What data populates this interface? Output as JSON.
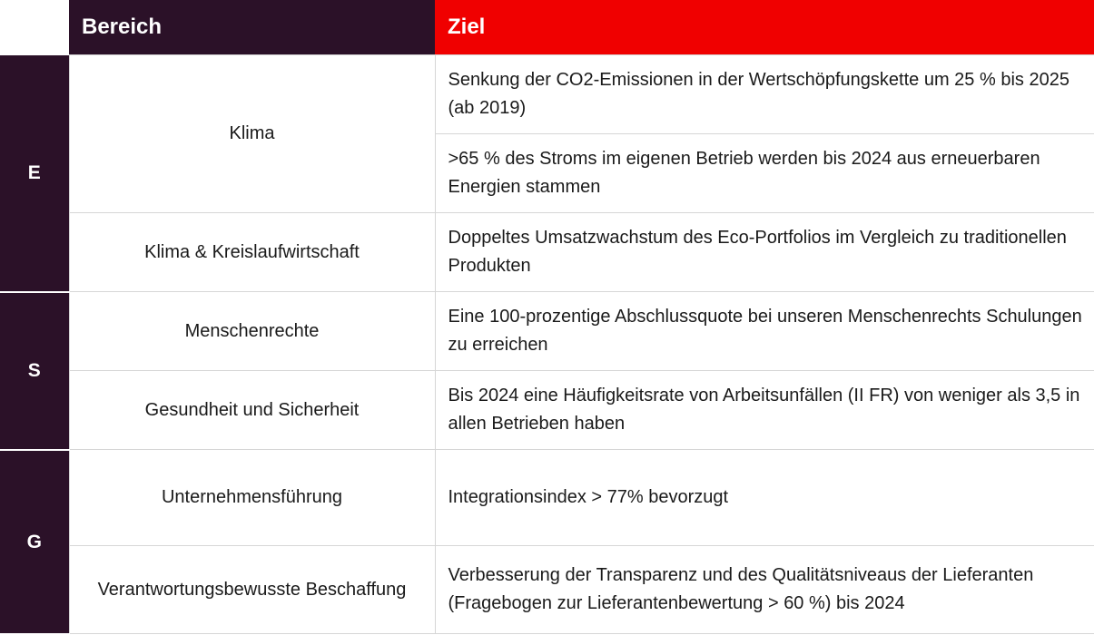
{
  "header": {
    "area_label": "Bereich",
    "goal_label": "Ziel"
  },
  "categories": {
    "e": "E",
    "s": "S",
    "g": "G"
  },
  "areas": {
    "klima": "Klima",
    "kreislauf": "Klima & Kreislaufwirtschaft",
    "menschenrechte": "Menschenrechte",
    "gesundheit": "Gesundheit und Sicherheit",
    "fuehrung": "Unternehmensführung",
    "beschaffung": "Verantwortungsbewusste Beschaffung"
  },
  "goals": {
    "co2": "Senkung der CO2-Emissionen in der Wertschöpfungskette um 25 % bis 2025 (ab 2019)",
    "strom": ">65 % des Stroms im eigenen Betrieb werden bis 2024 aus erneuerbaren Energien stammen",
    "umsatz": "Doppeltes Umsatzwachstum des Eco-Portfolios im Vergleich zu traditionellen Produkten",
    "schulung": "Eine 100-prozentige Abschlussquote bei unseren Menschenrechts Schulungen zu erreichen",
    "unfall": "Bis 2024 eine Häufigkeitsrate von Arbeitsunfällen (II FR) von weniger als 3,5 in allen Betrieben haben",
    "integration": "Integrationsindex > 77% bevorzugt",
    "lieferant": "Verbesserung der Transparenz und des Qualitätsniveaus der Lieferanten (Fragebogen zur Lieferantenbewertung > 60 %) bis 2024"
  }
}
